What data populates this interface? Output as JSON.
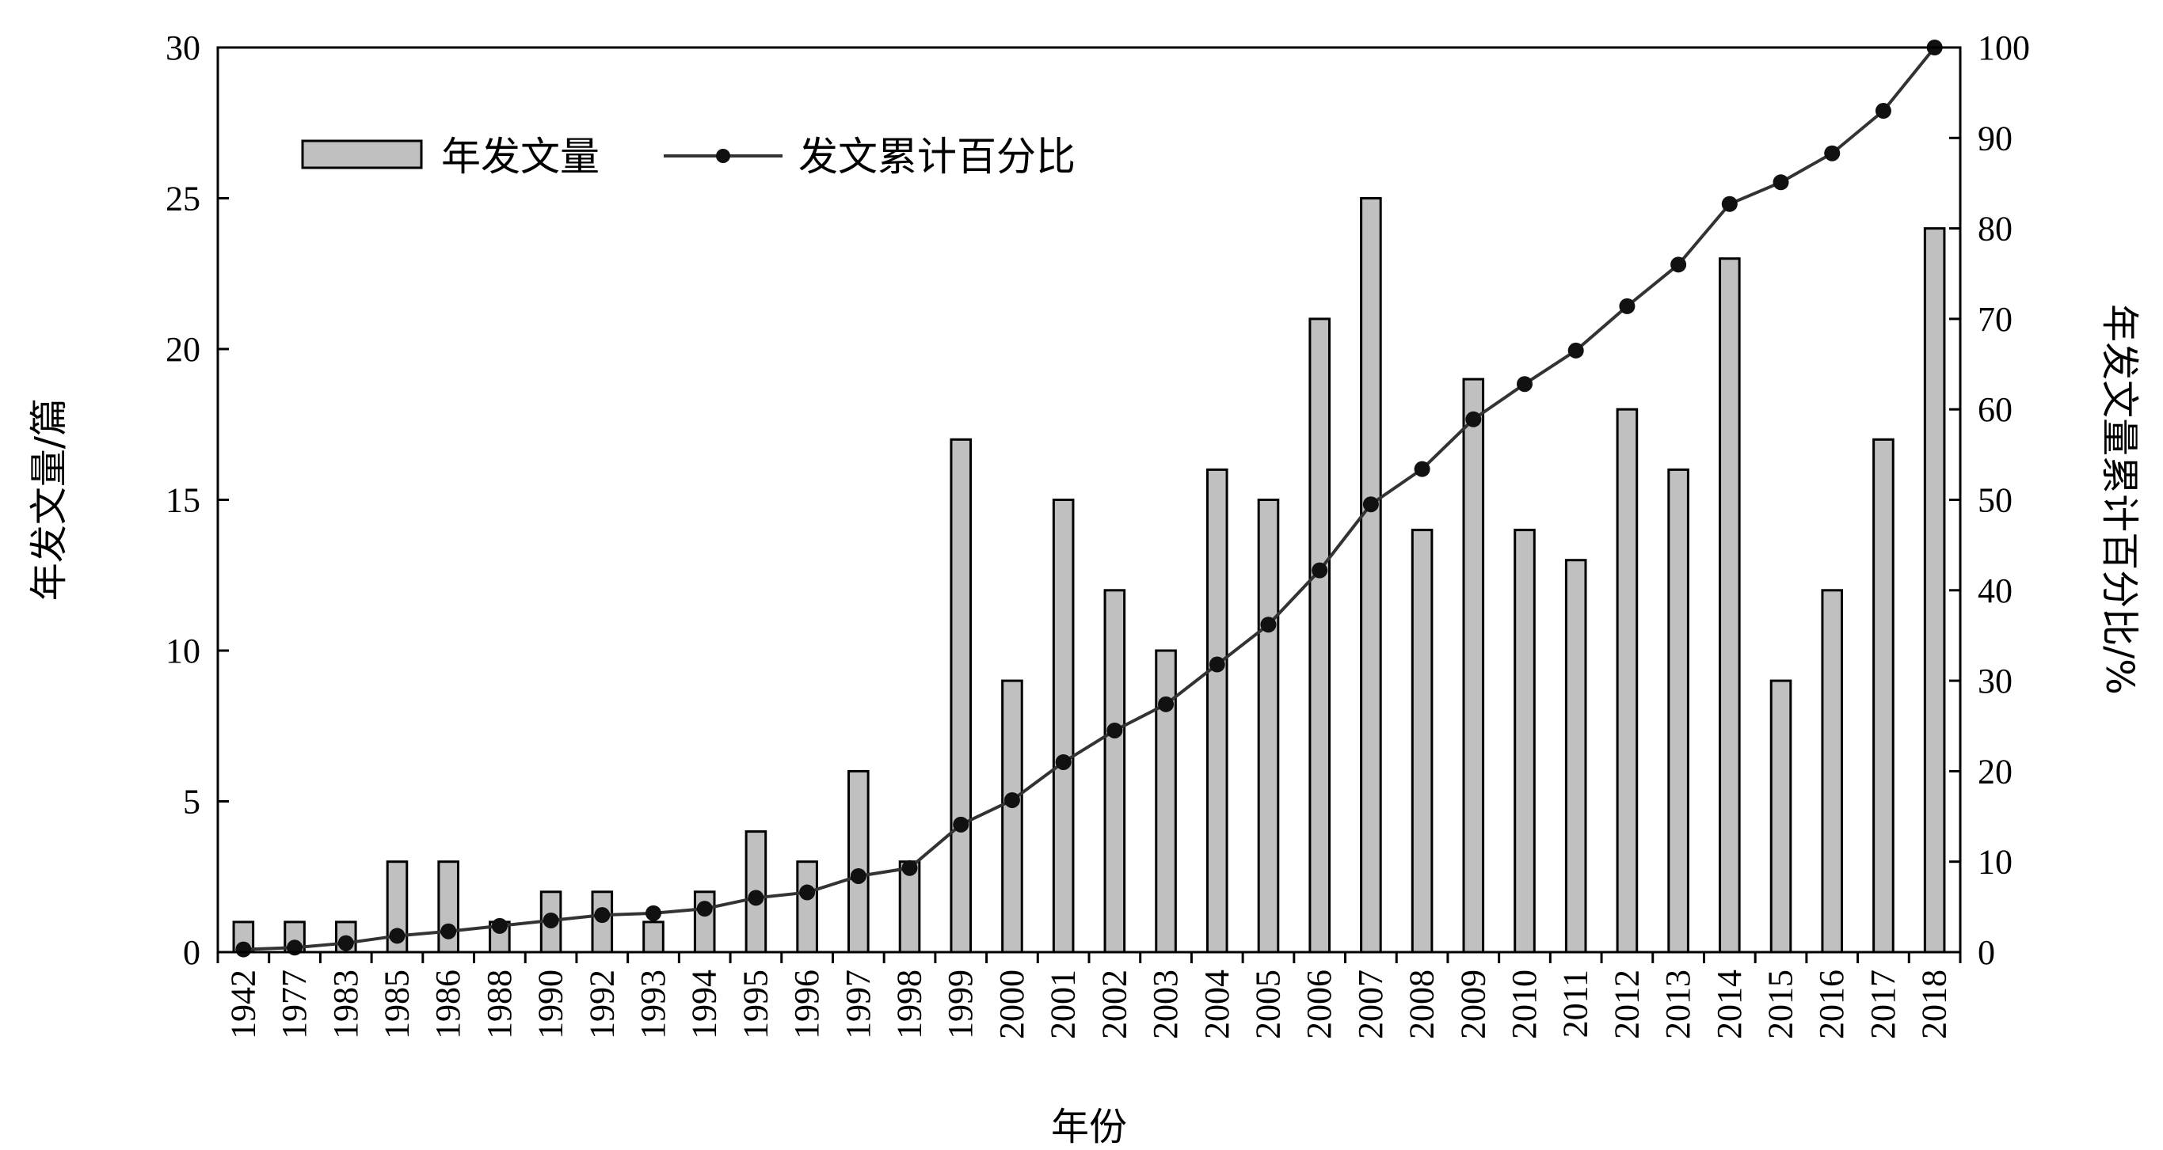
{
  "chart_data": {
    "type": "bar",
    "categories": [
      "1942",
      "1977",
      "1983",
      "1985",
      "1986",
      "1988",
      "1990",
      "1992",
      "1993",
      "1994",
      "1995",
      "1996",
      "1997",
      "1998",
      "1999",
      "2000",
      "2001",
      "2002",
      "2003",
      "2004",
      "2005",
      "2006",
      "2007",
      "2008",
      "2009",
      "2010",
      "2011",
      "2012",
      "2013",
      "2014",
      "2015",
      "2016",
      "2017",
      "2018"
    ],
    "series": [
      {
        "name": "年发文量",
        "type": "bar",
        "axis": "left",
        "color": "#c0c0c0",
        "values": [
          1,
          1,
          1,
          3,
          3,
          1,
          2,
          2,
          1,
          2,
          4,
          3,
          6,
          3,
          17,
          9,
          15,
          12,
          10,
          16,
          15,
          21,
          25,
          14,
          19,
          14,
          13,
          18,
          16,
          23,
          9,
          12,
          17,
          24
        ]
      },
      {
        "name": "发文累计百分比",
        "type": "line",
        "axis": "right",
        "color": "#333333",
        "values": [
          0.3,
          0.5,
          1.0,
          1.8,
          2.3,
          2.9,
          3.5,
          4.1,
          4.3,
          4.8,
          6.0,
          6.6,
          8.4,
          9.3,
          14.1,
          16.8,
          21.0,
          24.5,
          27.4,
          31.8,
          36.2,
          42.2,
          49.5,
          53.4,
          58.9,
          62.8,
          66.5,
          71.4,
          76.0,
          82.7,
          85.1,
          88.3,
          93.0,
          100
        ]
      }
    ],
    "xlabel": "年份",
    "ylabel": "年发文量/篇",
    "y2label": "年发文量累计百分比/%",
    "ylim": [
      0,
      30
    ],
    "y2lim": [
      0,
      100
    ],
    "yticks": [
      0,
      5,
      10,
      15,
      20,
      25,
      30
    ],
    "y2ticks": [
      0,
      10,
      20,
      30,
      40,
      50,
      60,
      70,
      80,
      90,
      100
    ],
    "legend_position": "top-left",
    "grid": false
  }
}
